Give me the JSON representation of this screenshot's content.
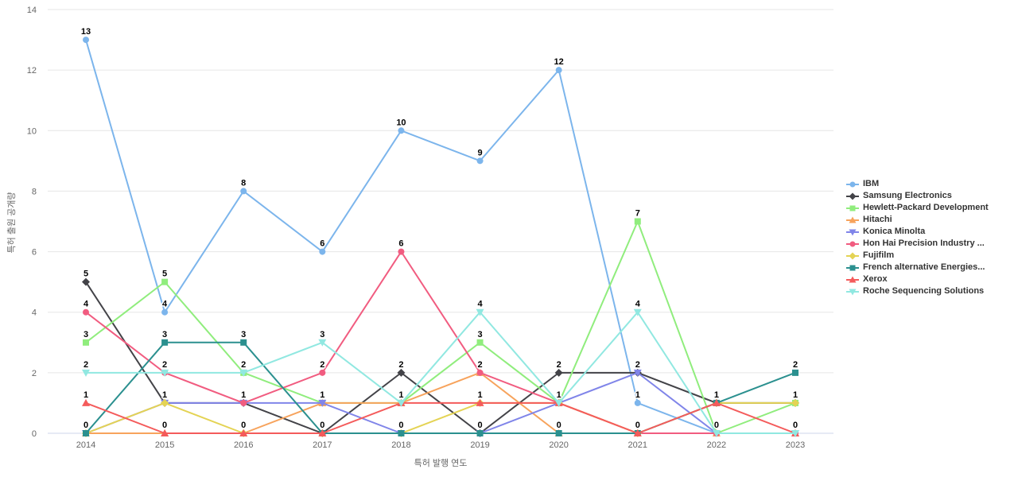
{
  "chart_data": {
    "type": "line",
    "title": "",
    "xlabel": "특허 발행 연도",
    "ylabel": "특허 출원 공개량",
    "categories": [
      "2014",
      "2015",
      "2016",
      "2017",
      "2018",
      "2019",
      "2020",
      "2021",
      "2022",
      "2023"
    ],
    "ylim": [
      0,
      14
    ],
    "ytick_interval": 2,
    "grid": true,
    "legend_position": "right",
    "grid_color": "#e6e6e6",
    "axis_line_color": "#ccd6eb",
    "tick_label_color": "#666666",
    "legend_text_color": "#333333",
    "series": [
      {
        "name": "IBM",
        "color": "#7cb5ec",
        "marker": "circle",
        "values": [
          13,
          4,
          8,
          6,
          10,
          9,
          12,
          1,
          0,
          0
        ]
      },
      {
        "name": "Samsung Electronics",
        "color": "#434348",
        "marker": "diamond",
        "values": [
          5,
          1,
          1,
          0,
          2,
          0,
          2,
          2,
          1,
          1
        ]
      },
      {
        "name": "Hewlett-Packard Development",
        "color": "#90ed7d",
        "marker": "square",
        "values": [
          3,
          5,
          2,
          1,
          1,
          3,
          1,
          7,
          0,
          1
        ]
      },
      {
        "name": "Hitachi",
        "color": "#f7a35c",
        "marker": "triangle",
        "values": [
          0,
          0,
          0,
          1,
          1,
          2,
          0,
          0,
          0,
          0
        ]
      },
      {
        "name": "Konica Minolta",
        "color": "#8085e9",
        "marker": "triangle-down",
        "values": [
          0,
          1,
          1,
          1,
          0,
          0,
          1,
          2,
          0,
          0
        ]
      },
      {
        "name": "Hon Hai Precision Industry ...",
        "color": "#f15c80",
        "marker": "circle",
        "values": [
          4,
          2,
          1,
          2,
          6,
          2,
          1,
          0,
          0,
          0
        ]
      },
      {
        "name": "Fujifilm",
        "color": "#e4d354",
        "marker": "diamond",
        "values": [
          0,
          1,
          0,
          0,
          0,
          1,
          1,
          0,
          1,
          1
        ]
      },
      {
        "name": "French alternative Energies...",
        "color": "#2b908f",
        "marker": "square",
        "values": [
          0,
          3,
          3,
          0,
          0,
          0,
          0,
          0,
          1,
          2
        ]
      },
      {
        "name": "Xerox",
        "color": "#f45b5b",
        "marker": "triangle",
        "values": [
          1,
          0,
          0,
          0,
          1,
          1,
          1,
          0,
          1,
          0
        ]
      },
      {
        "name": "Roche Sequencing Solutions",
        "color": "#91e8e1",
        "marker": "triangle-down",
        "values": [
          2,
          2,
          2,
          3,
          1,
          4,
          1,
          4,
          0,
          0
        ]
      }
    ]
  }
}
